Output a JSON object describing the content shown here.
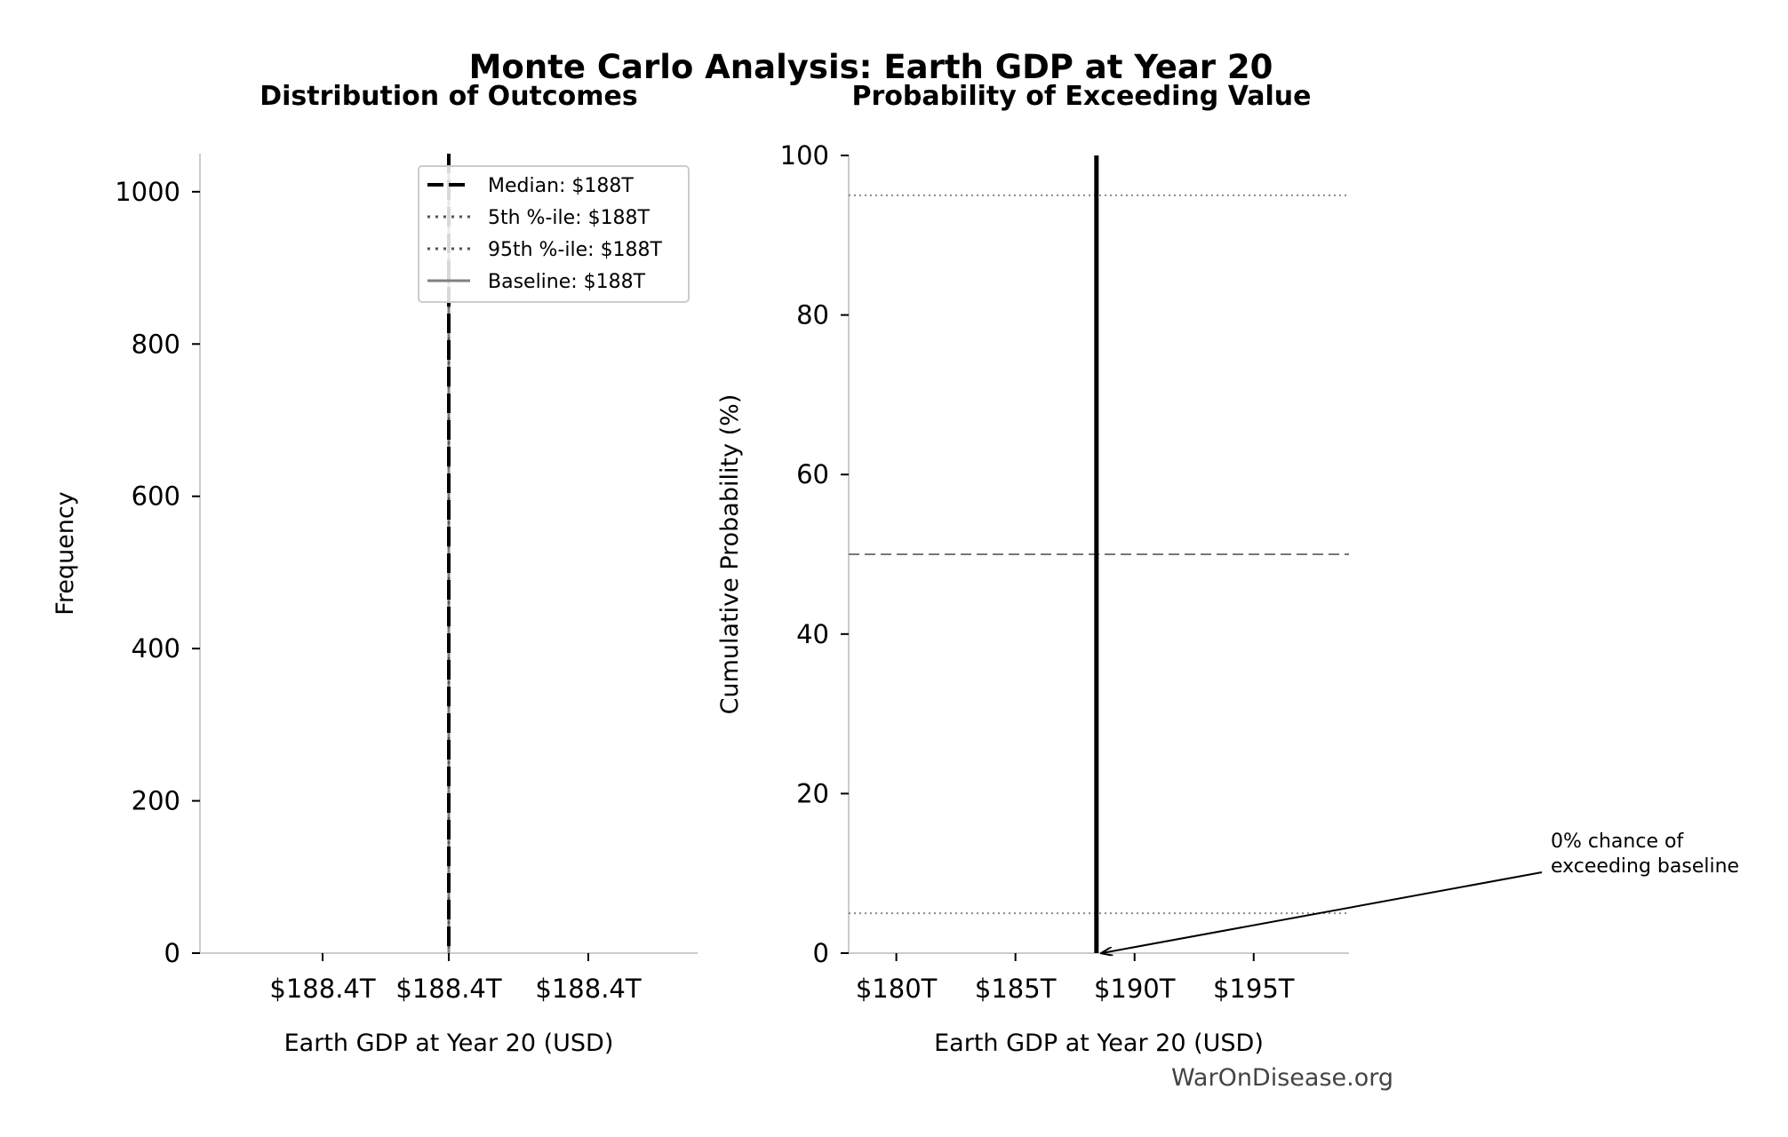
{
  "title": "Monte Carlo Analysis: Earth GDP at Year 20",
  "watermark": "WarOnDisease.org",
  "chart_data": [
    {
      "type": "bar",
      "title": "Distribution of Outcomes",
      "xlabel": "Earth GDP at Year 20 (USD)",
      "ylabel": "Frequency",
      "ylim": [
        0,
        1050
      ],
      "yticks": [
        0,
        200,
        400,
        600,
        800,
        1000
      ],
      "xtick_labels": [
        "$188.4T",
        "$188.4T",
        "$188.4T"
      ],
      "grid": false,
      "legend_position": "upper right",
      "legend": [
        {
          "label": "Median: $188T",
          "style": "dashed",
          "color": "#000000"
        },
        {
          "label": "5th %-ile: $188T",
          "style": "dotted",
          "color": "#555555"
        },
        {
          "label": "95th %-ile: $188T",
          "style": "dotted",
          "color": "#555555"
        },
        {
          "label": "Baseline: $188T",
          "style": "solid",
          "color": "#808080"
        }
      ]
    },
    {
      "type": "line",
      "title": "Probability of Exceeding Value",
      "xlabel": "Earth GDP at Year 20 (USD)",
      "ylabel": "Cumulative Probability (%)",
      "xlim": [
        178,
        199
      ],
      "ylim": [
        0,
        100
      ],
      "xticks": [
        180,
        185,
        190,
        195
      ],
      "xtick_labels": [
        "$180T",
        "$185T",
        "$190T",
        "$195T"
      ],
      "yticks": [
        0,
        20,
        40,
        60,
        80,
        100
      ],
      "value_line_x": 188.4,
      "reference_lines": [
        {
          "y": 95,
          "style": "dotted",
          "color": "#888888"
        },
        {
          "y": 50,
          "style": "dashed",
          "color": "#777777"
        },
        {
          "y": 5,
          "style": "dotted",
          "color": "#888888"
        }
      ],
      "annotation": "0% chance of\nexceeding baseline",
      "annotation_target_x": 188.4,
      "annotation_target_y": 0
    }
  ]
}
